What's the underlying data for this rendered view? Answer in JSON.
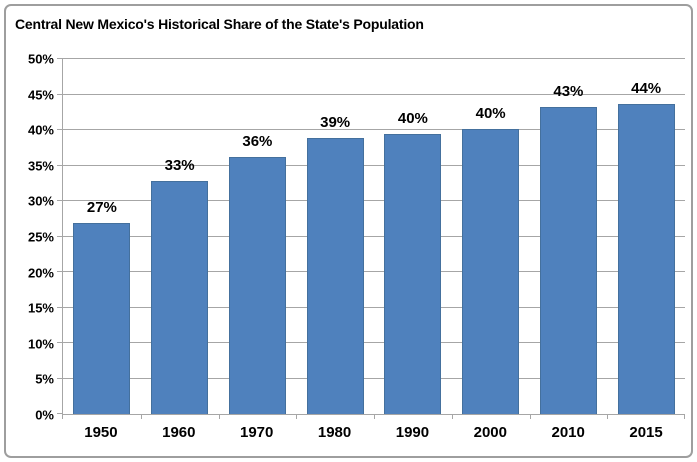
{
  "chart": {
    "title": "Central New Mexico's Historical Share of the State's Population"
  },
  "chart_data": {
    "type": "bar",
    "title": "Central New Mexico's Historical Share of the State's Population",
    "categories": [
      "1950",
      "1960",
      "1970",
      "1980",
      "1990",
      "2000",
      "2010",
      "2015"
    ],
    "values": [
      26.9,
      32.8,
      36.2,
      38.9,
      39.5,
      40.1,
      43.2,
      43.7
    ],
    "bar_labels": [
      "27%",
      "33%",
      "36%",
      "39%",
      "40%",
      "40%",
      "43%",
      "44%"
    ],
    "xlabel": "",
    "ylabel": "",
    "ylim": [
      0,
      50
    ],
    "ytick_step": 5,
    "ytick_labels": [
      "0%",
      "5%",
      "10%",
      "15%",
      "20%",
      "25%",
      "30%",
      "35%",
      "40%",
      "45%",
      "50%"
    ],
    "grid": true,
    "legend_position": "none",
    "colors": {
      "bar_fill": "#4F81BD",
      "bar_edge": "#44709D",
      "gridline": "#A6A6A6",
      "axis": "#A6A6A6",
      "text": "#000000",
      "chart_border": "#9E9E9E",
      "background": "#FFFFFF"
    }
  }
}
